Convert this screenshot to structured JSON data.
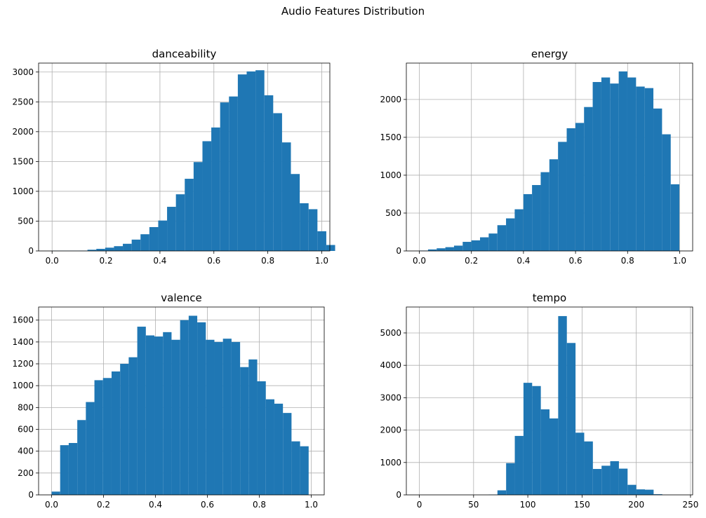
{
  "figure": {
    "suptitle": "Audio Features Distribution",
    "bar_color": "#1f77b4",
    "grid_color": "#b0b0b0"
  },
  "chart_data": [
    {
      "type": "bar",
      "title": "danceability",
      "xlabel": "",
      "ylabel": "",
      "grid": true,
      "xlim": [
        -0.05,
        1.03
      ],
      "ylim": [
        0,
        3150
      ],
      "xticks": [
        0.0,
        0.2,
        0.4,
        0.6,
        0.8,
        1.0
      ],
      "xtick_labels": [
        "0.0",
        "0.2",
        "0.4",
        "0.6",
        "0.8",
        "1.0"
      ],
      "yticks": [
        0,
        500,
        1000,
        1500,
        2000,
        2500,
        3000
      ],
      "ytick_labels": [
        "0",
        "500",
        "1000",
        "1500",
        "2000",
        "2500",
        "3000"
      ],
      "bin_start": 0.0,
      "bin_width": 0.0328,
      "values": [
        3,
        3,
        4,
        5,
        20,
        35,
        55,
        80,
        120,
        190,
        280,
        400,
        510,
        740,
        950,
        1210,
        1490,
        1840,
        2070,
        2490,
        2590,
        2960,
        3010,
        3030,
        2610,
        2310,
        1820,
        1290,
        800,
        700,
        330,
        100
      ]
    },
    {
      "type": "bar",
      "title": "energy",
      "xlabel": "",
      "ylabel": "",
      "grid": true,
      "xlim": [
        -0.05,
        1.05
      ],
      "ylim": [
        0,
        2480
      ],
      "xticks": [
        0.0,
        0.2,
        0.4,
        0.6,
        0.8,
        1.0
      ],
      "xtick_labels": [
        "0.0",
        "0.2",
        "0.4",
        "0.6",
        "0.8",
        "1.0"
      ],
      "yticks": [
        0,
        500,
        1000,
        1500,
        2000
      ],
      "ytick_labels": [
        "0",
        "500",
        "1000",
        "1500",
        "2000"
      ],
      "bin_start": 0.0,
      "bin_width": 0.0333,
      "values": [
        5,
        20,
        35,
        50,
        70,
        120,
        140,
        180,
        230,
        340,
        430,
        550,
        750,
        870,
        1040,
        1210,
        1440,
        1620,
        1690,
        1900,
        2230,
        2290,
        2210,
        2370,
        2290,
        2170,
        2150,
        1880,
        1540,
        880
      ]
    },
    {
      "type": "bar",
      "title": "valence",
      "xlabel": "",
      "ylabel": "",
      "grid": true,
      "xlim": [
        -0.05,
        1.05
      ],
      "ylim": [
        0,
        1720
      ],
      "xticks": [
        0.0,
        0.2,
        0.4,
        0.6,
        0.8,
        1.0
      ],
      "xtick_labels": [
        "0.0",
        "0.2",
        "0.4",
        "0.6",
        "0.8",
        "1.0"
      ],
      "yticks": [
        0,
        200,
        400,
        600,
        800,
        1000,
        1200,
        1400,
        1600
      ],
      "ytick_labels": [
        "0",
        "200",
        "400",
        "600",
        "800",
        "1000",
        "1200",
        "1400",
        "1600"
      ],
      "bin_start": 0.0,
      "bin_width": 0.033,
      "values": [
        30,
        455,
        475,
        685,
        850,
        1050,
        1070,
        1130,
        1200,
        1260,
        1540,
        1460,
        1450,
        1490,
        1420,
        1600,
        1640,
        1580,
        1420,
        1400,
        1430,
        1400,
        1170,
        1240,
        1040,
        875,
        835,
        750,
        490,
        445
      ]
    },
    {
      "type": "bar",
      "title": "tempo",
      "xlabel": "",
      "ylabel": "",
      "grid": true,
      "xlim": [
        -12,
        252
      ],
      "ylim": [
        0,
        5800
      ],
      "xticks": [
        0,
        50,
        100,
        150,
        200,
        250
      ],
      "xtick_labels": [
        "0",
        "50",
        "100",
        "150",
        "200",
        "250"
      ],
      "yticks": [
        0,
        1000,
        2000,
        3000,
        4000,
        5000
      ],
      "ytick_labels": [
        "0",
        "1000",
        "2000",
        "3000",
        "4000",
        "5000"
      ],
      "bin_start": 0,
      "bin_width": 8,
      "values": [
        0,
        0,
        0,
        0,
        0,
        0,
        0,
        0,
        10,
        140,
        980,
        1820,
        3460,
        3360,
        2640,
        2360,
        5520,
        4690,
        1920,
        1650,
        800,
        900,
        1040,
        810,
        310,
        170,
        160,
        20,
        0,
        0
      ]
    }
  ]
}
